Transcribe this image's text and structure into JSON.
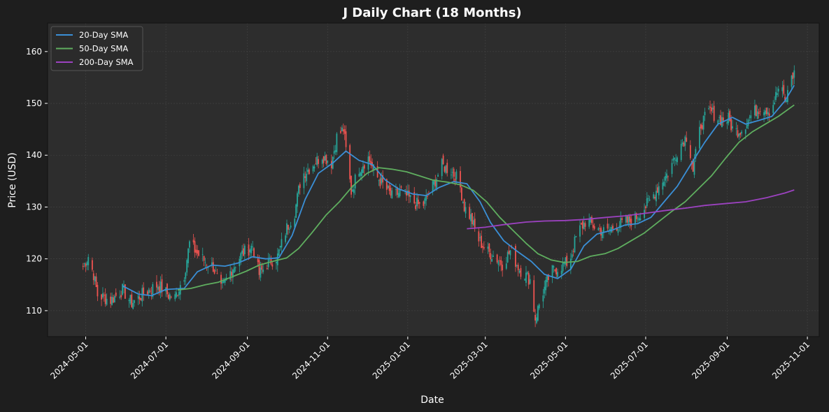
{
  "chart_data": {
    "type": "candlestick",
    "title": "J Daily Chart (18 Months)",
    "xlabel": "Date",
    "ylabel": "Price (USD)",
    "x_range": [
      "2024-04-02",
      "2025-11-10"
    ],
    "ylim": [
      105,
      165.5
    ],
    "y_ticks": [
      110,
      120,
      130,
      140,
      150,
      160
    ],
    "x_ticks": [
      "2024-05-01",
      "2024-07-01",
      "2024-09-01",
      "2024-11-01",
      "2025-01-01",
      "2025-03-01",
      "2025-05-01",
      "2025-07-01",
      "2025-09-01",
      "2025-11-01"
    ],
    "grid": true,
    "legend_position": "top-left",
    "colors": {
      "background": "#1e1e1e",
      "plot_background": "#2d2d2d",
      "up": "#26a69a",
      "down": "#ef5350",
      "sma20": "#3a8fd6",
      "sma50": "#5fae5f",
      "sma200": "#9c42c0",
      "grid": "#444444",
      "text": "#ffffff"
    },
    "price_anchors": [
      [
        "2024-04-29",
        118.5
      ],
      [
        "2024-05-03",
        120.5
      ],
      [
        "2024-05-07",
        117.0
      ],
      [
        "2024-05-10",
        113.0
      ],
      [
        "2024-05-20",
        112.0
      ],
      [
        "2024-05-29",
        114.0
      ],
      [
        "2024-06-05",
        111.5
      ],
      [
        "2024-06-15",
        113.5
      ],
      [
        "2024-06-25",
        115.0
      ],
      [
        "2024-07-03",
        113.0
      ],
      [
        "2024-07-08",
        112.5
      ],
      [
        "2024-07-15",
        117.0
      ],
      [
        "2024-07-19",
        123.0
      ],
      [
        "2024-07-25",
        121.0
      ],
      [
        "2024-07-31",
        119.5
      ],
      [
        "2024-08-06",
        118.5
      ],
      [
        "2024-08-12",
        114.0
      ],
      [
        "2024-08-20",
        118.0
      ],
      [
        "2024-08-28",
        121.0
      ],
      [
        "2024-09-05",
        122.5
      ],
      [
        "2024-09-10",
        117.0
      ],
      [
        "2024-09-16",
        119.0
      ],
      [
        "2024-09-24",
        120.5
      ],
      [
        "2024-10-01",
        126.0
      ],
      [
        "2024-10-07",
        129.0
      ],
      [
        "2024-10-12",
        136.0
      ],
      [
        "2024-10-20",
        138.0
      ],
      [
        "2024-10-28",
        140.0
      ],
      [
        "2024-11-04",
        138.5
      ],
      [
        "2024-11-08",
        143.5
      ],
      [
        "2024-11-13",
        145.0
      ],
      [
        "2024-11-19",
        133.0
      ],
      [
        "2024-11-25",
        137.5
      ],
      [
        "2024-12-02",
        139.5
      ],
      [
        "2024-12-08",
        136.0
      ],
      [
        "2024-12-14",
        134.0
      ],
      [
        "2024-12-20",
        132.0
      ],
      [
        "2024-12-27",
        133.0
      ],
      [
        "2025-01-05",
        131.0
      ],
      [
        "2025-01-12",
        130.0
      ],
      [
        "2025-01-20",
        134.0
      ],
      [
        "2025-01-27",
        138.0
      ],
      [
        "2025-02-03",
        137.0
      ],
      [
        "2025-02-09",
        135.0
      ],
      [
        "2025-02-13",
        130.0
      ],
      [
        "2025-02-18",
        128.0
      ],
      [
        "2025-02-23",
        124.0
      ],
      [
        "2025-03-02",
        121.5
      ],
      [
        "2025-03-08",
        120.5
      ],
      [
        "2025-03-14",
        119.0
      ],
      [
        "2025-03-20",
        121.5
      ],
      [
        "2025-03-27",
        118.0
      ],
      [
        "2025-04-04",
        116.0
      ],
      [
        "2025-04-08",
        108.5
      ],
      [
        "2025-04-13",
        113.0
      ],
      [
        "2025-04-20",
        117.5
      ],
      [
        "2025-04-27",
        118.5
      ],
      [
        "2025-05-04",
        119.5
      ],
      [
        "2025-05-10",
        125.0
      ],
      [
        "2025-05-17",
        127.5
      ],
      [
        "2025-05-24",
        126.0
      ],
      [
        "2025-06-01",
        125.0
      ],
      [
        "2025-06-08",
        126.5
      ],
      [
        "2025-06-15",
        127.0
      ],
      [
        "2025-06-22",
        127.5
      ],
      [
        "2025-06-29",
        129.5
      ],
      [
        "2025-07-05",
        131.5
      ],
      [
        "2025-07-12",
        134.5
      ],
      [
        "2025-07-19",
        137.0
      ],
      [
        "2025-07-26",
        141.5
      ],
      [
        "2025-08-02",
        144.0
      ],
      [
        "2025-08-06",
        137.0
      ],
      [
        "2025-08-12",
        146.0
      ],
      [
        "2025-08-19",
        148.5
      ],
      [
        "2025-08-26",
        147.0
      ],
      [
        "2025-09-02",
        147.0
      ],
      [
        "2025-09-06",
        144.5
      ],
      [
        "2025-09-12",
        145.0
      ],
      [
        "2025-09-20",
        148.0
      ],
      [
        "2025-09-27",
        149.5
      ],
      [
        "2025-10-04",
        148.5
      ],
      [
        "2025-10-11",
        153.5
      ],
      [
        "2025-10-16",
        150.0
      ],
      [
        "2025-10-19",
        158.0
      ],
      [
        "2025-10-21",
        154.0
      ],
      [
        "2025-10-22",
        157.0
      ]
    ],
    "series": [
      {
        "name": "20-Day SMA",
        "points": [
          [
            "2024-05-29",
            114.8
          ],
          [
            "2024-06-10",
            113.2
          ],
          [
            "2024-06-20",
            112.9
          ],
          [
            "2024-07-01",
            114.1
          ],
          [
            "2024-07-15",
            114.3
          ],
          [
            "2024-07-25",
            117.5
          ],
          [
            "2024-08-05",
            118.8
          ],
          [
            "2024-08-15",
            118.6
          ],
          [
            "2024-08-25",
            119.2
          ],
          [
            "2024-09-05",
            120.4
          ],
          [
            "2024-09-15",
            120.0
          ],
          [
            "2024-09-25",
            120.2
          ],
          [
            "2024-10-05",
            124.5
          ],
          [
            "2024-10-15",
            131.5
          ],
          [
            "2024-10-25",
            136.5
          ],
          [
            "2024-11-05",
            138.5
          ],
          [
            "2024-11-15",
            140.8
          ],
          [
            "2024-11-25",
            139.0
          ],
          [
            "2024-12-05",
            138.2
          ],
          [
            "2024-12-15",
            135.2
          ],
          [
            "2024-12-25",
            133.5
          ],
          [
            "2025-01-05",
            132.5
          ],
          [
            "2025-01-15",
            132.2
          ],
          [
            "2025-01-25",
            133.8
          ],
          [
            "2025-02-05",
            134.9
          ],
          [
            "2025-02-15",
            134.5
          ],
          [
            "2025-02-25",
            131.0
          ],
          [
            "2025-03-05",
            127.0
          ],
          [
            "2025-03-15",
            123.5
          ],
          [
            "2025-03-25",
            121.5
          ],
          [
            "2025-04-05",
            119.5
          ],
          [
            "2025-04-15",
            117.0
          ],
          [
            "2025-04-25",
            116.2
          ],
          [
            "2025-05-05",
            118.0
          ],
          [
            "2025-05-15",
            122.5
          ],
          [
            "2025-05-25",
            124.8
          ],
          [
            "2025-06-05",
            125.5
          ],
          [
            "2025-06-15",
            126.5
          ],
          [
            "2025-06-25",
            126.8
          ],
          [
            "2025-07-05",
            128.0
          ],
          [
            "2025-07-15",
            131.0
          ],
          [
            "2025-07-25",
            134.0
          ],
          [
            "2025-08-05",
            138.5
          ],
          [
            "2025-08-15",
            142.5
          ],
          [
            "2025-08-25",
            146.0
          ],
          [
            "2025-09-05",
            147.3
          ],
          [
            "2025-09-15",
            146.0
          ],
          [
            "2025-09-25",
            146.7
          ],
          [
            "2025-10-05",
            147.5
          ],
          [
            "2025-10-15",
            150.5
          ],
          [
            "2025-10-22",
            153.5
          ]
        ]
      },
      {
        "name": "50-Day SMA",
        "points": [
          [
            "2024-07-10",
            114.0
          ],
          [
            "2024-07-20",
            114.3
          ],
          [
            "2024-07-31",
            115.0
          ],
          [
            "2024-08-10",
            115.5
          ],
          [
            "2024-08-20",
            116.5
          ],
          [
            "2024-08-31",
            117.6
          ],
          [
            "2024-09-10",
            118.8
          ],
          [
            "2024-09-20",
            119.5
          ],
          [
            "2024-10-01",
            120.2
          ],
          [
            "2024-10-10",
            122.0
          ],
          [
            "2024-10-20",
            125.0
          ],
          [
            "2024-10-31",
            128.5
          ],
          [
            "2024-11-10",
            131.0
          ],
          [
            "2024-11-20",
            134.0
          ],
          [
            "2024-12-01",
            136.5
          ],
          [
            "2024-12-10",
            137.6
          ],
          [
            "2024-12-20",
            137.3
          ],
          [
            "2024-12-31",
            136.8
          ],
          [
            "2025-01-10",
            136.0
          ],
          [
            "2025-01-20",
            135.2
          ],
          [
            "2025-01-31",
            134.8
          ],
          [
            "2025-02-10",
            134.3
          ],
          [
            "2025-02-20",
            133.2
          ],
          [
            "2025-03-02",
            131.0
          ],
          [
            "2025-03-12",
            128.0
          ],
          [
            "2025-03-22",
            125.5
          ],
          [
            "2025-04-01",
            123.0
          ],
          [
            "2025-04-10",
            121.0
          ],
          [
            "2025-04-20",
            119.8
          ],
          [
            "2025-04-30",
            119.3
          ],
          [
            "2025-05-10",
            119.5
          ],
          [
            "2025-05-20",
            120.5
          ],
          [
            "2025-05-31",
            121.0
          ],
          [
            "2025-06-10",
            122.0
          ],
          [
            "2025-06-20",
            123.5
          ],
          [
            "2025-06-30",
            125.0
          ],
          [
            "2025-07-10",
            127.0
          ],
          [
            "2025-07-20",
            129.0
          ],
          [
            "2025-07-31",
            131.0
          ],
          [
            "2025-08-10",
            133.5
          ],
          [
            "2025-08-20",
            136.0
          ],
          [
            "2025-08-31",
            139.5
          ],
          [
            "2025-09-10",
            142.5
          ],
          [
            "2025-09-20",
            144.5
          ],
          [
            "2025-09-30",
            146.0
          ],
          [
            "2025-10-10",
            147.5
          ],
          [
            "2025-10-22",
            149.7
          ]
        ]
      },
      {
        "name": "200-Day SMA",
        "points": [
          [
            "2025-02-15",
            125.8
          ],
          [
            "2025-03-01",
            126.1
          ],
          [
            "2025-03-15",
            126.6
          ],
          [
            "2025-04-01",
            127.1
          ],
          [
            "2025-04-15",
            127.3
          ],
          [
            "2025-05-01",
            127.4
          ],
          [
            "2025-05-15",
            127.6
          ],
          [
            "2025-06-01",
            128.0
          ],
          [
            "2025-06-15",
            128.3
          ],
          [
            "2025-07-01",
            128.8
          ],
          [
            "2025-07-15",
            129.3
          ],
          [
            "2025-08-01",
            129.8
          ],
          [
            "2025-08-15",
            130.3
          ],
          [
            "2025-09-01",
            130.7
          ],
          [
            "2025-09-15",
            131.0
          ],
          [
            "2025-10-01",
            131.8
          ],
          [
            "2025-10-15",
            132.7
          ],
          [
            "2025-10-22",
            133.3
          ]
        ]
      }
    ]
  }
}
